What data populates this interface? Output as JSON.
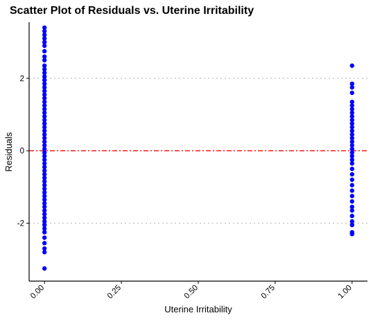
{
  "chart_data": {
    "type": "scatter",
    "title": "Scatter Plot of Residuals vs. Uterine Irritability",
    "xlabel": "Uterine Irritability",
    "ylabel": "Residuals",
    "xlim": [
      -0.05,
      1.05
    ],
    "ylim": [
      -3.6,
      3.55
    ],
    "x_ticks": [
      0,
      0.25,
      0.5,
      0.75,
      1
    ],
    "x_tick_labels": [
      "0.00",
      "0.25",
      "0.50",
      "0.75",
      "1.00"
    ],
    "y_ticks": [
      -2,
      0,
      2
    ],
    "y_tick_labels": [
      "-2",
      "0",
      "2"
    ],
    "reference_lines": [
      {
        "y": 0,
        "color": "#ff0000",
        "style": "dashdot"
      },
      {
        "y": 2,
        "color": "#c0c0c0",
        "style": "dotted"
      },
      {
        "y": -2,
        "color": "#c0c0c0",
        "style": "dotted"
      }
    ],
    "point_color": "#0000ff",
    "grid": false,
    "points": [
      [
        0,
        3.4
      ],
      [
        0,
        3.3
      ],
      [
        0,
        3.2
      ],
      [
        0,
        3.1
      ],
      [
        0,
        3.0
      ],
      [
        0,
        2.9
      ],
      [
        0,
        2.75
      ],
      [
        0,
        2.6
      ],
      [
        0,
        2.5
      ],
      [
        0,
        2.35
      ],
      [
        0,
        2.25
      ],
      [
        0,
        2.15
      ],
      [
        0,
        2.05
      ],
      [
        0,
        1.95
      ],
      [
        0,
        1.85
      ],
      [
        0,
        1.75
      ],
      [
        0,
        1.65
      ],
      [
        0,
        1.55
      ],
      [
        0,
        1.45
      ],
      [
        0,
        1.35
      ],
      [
        0,
        1.25
      ],
      [
        0,
        1.15
      ],
      [
        0,
        1.05
      ],
      [
        0,
        0.95
      ],
      [
        0,
        0.85
      ],
      [
        0,
        0.75
      ],
      [
        0,
        0.65
      ],
      [
        0,
        0.55
      ],
      [
        0,
        0.45
      ],
      [
        0,
        0.35
      ],
      [
        0,
        0.25
      ],
      [
        0,
        0.15
      ],
      [
        0,
        0.05
      ],
      [
        0,
        -0.05
      ],
      [
        0,
        -0.15
      ],
      [
        0,
        -0.25
      ],
      [
        0,
        -0.35
      ],
      [
        0,
        -0.45
      ],
      [
        0,
        -0.55
      ],
      [
        0,
        -0.65
      ],
      [
        0,
        -0.75
      ],
      [
        0,
        -0.85
      ],
      [
        0,
        -0.95
      ],
      [
        0,
        -1.05
      ],
      [
        0,
        -1.15
      ],
      [
        0,
        -1.25
      ],
      [
        0,
        -1.35
      ],
      [
        0,
        -1.45
      ],
      [
        0,
        -1.55
      ],
      [
        0,
        -1.65
      ],
      [
        0,
        -1.75
      ],
      [
        0,
        -1.85
      ],
      [
        0,
        -1.95
      ],
      [
        0,
        -2.05
      ],
      [
        0,
        -2.15
      ],
      [
        0,
        -2.25
      ],
      [
        0,
        -2.4
      ],
      [
        0,
        -2.55
      ],
      [
        0,
        -2.7
      ],
      [
        0,
        -2.8
      ],
      [
        0,
        -3.25
      ],
      [
        1,
        2.35
      ],
      [
        1,
        1.85
      ],
      [
        1,
        1.75
      ],
      [
        1,
        1.6
      ],
      [
        1,
        1.35
      ],
      [
        1,
        1.25
      ],
      [
        1,
        1.15
      ],
      [
        1,
        1.05
      ],
      [
        1,
        0.95
      ],
      [
        1,
        0.85
      ],
      [
        1,
        0.75
      ],
      [
        1,
        0.65
      ],
      [
        1,
        0.55
      ],
      [
        1,
        0.45
      ],
      [
        1,
        0.35
      ],
      [
        1,
        0.25
      ],
      [
        1,
        0.15
      ],
      [
        1,
        0.05
      ],
      [
        1,
        -0.05
      ],
      [
        1,
        -0.15
      ],
      [
        1,
        -0.25
      ],
      [
        1,
        -0.35
      ],
      [
        1,
        -0.5
      ],
      [
        1,
        -0.65
      ],
      [
        1,
        -0.8
      ],
      [
        1,
        -0.95
      ],
      [
        1,
        -1.1
      ],
      [
        1,
        -1.25
      ],
      [
        1,
        -1.4
      ],
      [
        1,
        -1.55
      ],
      [
        1,
        -1.65
      ],
      [
        1,
        -1.8
      ],
      [
        1,
        -1.95
      ],
      [
        1,
        -2.05
      ],
      [
        1,
        -2.25
      ],
      [
        1,
        -2.3
      ]
    ]
  }
}
